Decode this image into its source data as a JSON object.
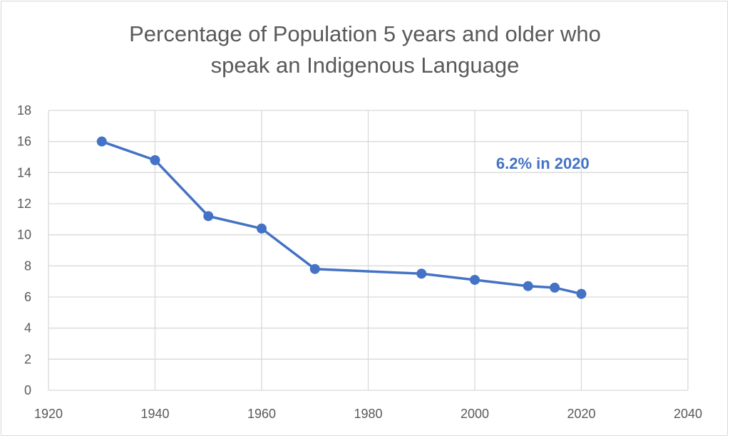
{
  "chart_data": {
    "type": "scatter",
    "title_lines": [
      "Percentage of Population 5 years and older who",
      "speak an Indigenous Language"
    ],
    "x": [
      1930,
      1940,
      1950,
      1960,
      1970,
      1990,
      2000,
      2010,
      2015,
      2020
    ],
    "y": [
      16.0,
      14.8,
      11.2,
      10.4,
      7.8,
      7.5,
      7.1,
      6.7,
      6.6,
      6.2
    ],
    "markers": true,
    "connected_lines": true,
    "xlim": [
      1920,
      2040
    ],
    "ylim": [
      0,
      18
    ],
    "x_ticks": [
      1920,
      1940,
      1960,
      1980,
      2000,
      2020,
      2040
    ],
    "y_ticks": [
      0,
      2,
      4,
      6,
      8,
      10,
      12,
      14,
      16,
      18
    ],
    "grid": true,
    "legend": "none",
    "annotations": [
      {
        "text": "6.2% in 2020",
        "x": 2004,
        "y": 14.6
      }
    ],
    "colors": {
      "series": "#4472c4",
      "grid": "#d9d9d9",
      "text": "#595959"
    }
  }
}
